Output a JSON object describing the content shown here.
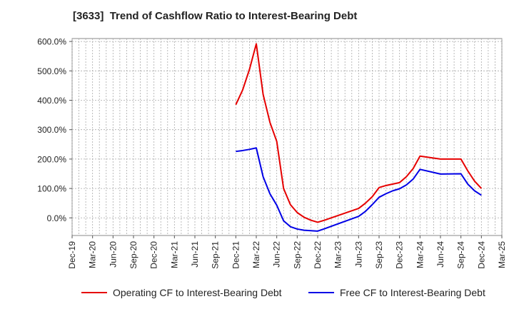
{
  "chart_data": {
    "type": "line",
    "title": "[3633]  Trend of Cashflow Ratio to Interest-Bearing Debt",
    "xlabel": "",
    "ylabel": "",
    "x_ticks": [
      "Dec-19",
      "Mar-20",
      "Jun-20",
      "Sep-20",
      "Dec-20",
      "Mar-21",
      "Jun-21",
      "Sep-21",
      "Dec-21",
      "Mar-22",
      "Jun-22",
      "Sep-22",
      "Dec-22",
      "Mar-23",
      "Jun-23",
      "Sep-23",
      "Dec-23",
      "Mar-24",
      "Jun-24",
      "Sep-24",
      "Dec-24",
      "Mar-25"
    ],
    "y_ticks": [
      "600.0%",
      "500.0%",
      "400.0%",
      "300.0%",
      "200.0%",
      "100.0%",
      "0.0%"
    ],
    "ylim": [
      -60,
      610
    ],
    "grid": true,
    "legend_position": "bottom",
    "series": [
      {
        "name": "Operating CF to Interest-Bearing Debt",
        "color": "#e60000",
        "points": [
          [
            "Dec-21",
            385
          ],
          [
            "Jan-22",
            435
          ],
          [
            "Feb-22",
            505
          ],
          [
            "Mar-22",
            592
          ],
          [
            "Apr-22",
            420
          ],
          [
            "May-22",
            325
          ],
          [
            "Jun-22",
            260
          ],
          [
            "Jul-22",
            100
          ],
          [
            "Aug-22",
            45
          ],
          [
            "Sep-22",
            18
          ],
          [
            "Oct-22",
            2
          ],
          [
            "Nov-22",
            -8
          ],
          [
            "Dec-22",
            -15
          ],
          [
            "Jan-23",
            -8
          ],
          [
            "Mar-23",
            8
          ],
          [
            "Jun-23",
            32
          ],
          [
            "Jul-23",
            50
          ],
          [
            "Aug-23",
            72
          ],
          [
            "Sep-23",
            103
          ],
          [
            "Oct-23",
            110
          ],
          [
            "Dec-23",
            120
          ],
          [
            "Jan-24",
            140
          ],
          [
            "Feb-24",
            168
          ],
          [
            "Mar-24",
            210
          ],
          [
            "Jun-24",
            200
          ],
          [
            "Sep-24",
            200
          ],
          [
            "Oct-24",
            160
          ],
          [
            "Nov-24",
            125
          ],
          [
            "Dec-24",
            100
          ]
        ]
      },
      {
        "name": "Free CF to Interest-Bearing Debt",
        "color": "#0000e6",
        "points": [
          [
            "Dec-21",
            226
          ],
          [
            "Jan-22",
            229
          ],
          [
            "Feb-22",
            233
          ],
          [
            "Mar-22",
            238
          ],
          [
            "Apr-22",
            140
          ],
          [
            "May-22",
            82
          ],
          [
            "Jun-22",
            43
          ],
          [
            "Jul-22",
            -10
          ],
          [
            "Aug-22",
            -30
          ],
          [
            "Sep-22",
            -38
          ],
          [
            "Oct-22",
            -42
          ],
          [
            "Dec-22",
            -45
          ],
          [
            "Jan-23",
            -37
          ],
          [
            "Mar-23",
            -20
          ],
          [
            "Jun-23",
            5
          ],
          [
            "Jul-23",
            22
          ],
          [
            "Aug-23",
            45
          ],
          [
            "Sep-23",
            70
          ],
          [
            "Oct-23",
            82
          ],
          [
            "Nov-23",
            92
          ],
          [
            "Dec-23",
            99
          ],
          [
            "Jan-24",
            112
          ],
          [
            "Feb-24",
            132
          ],
          [
            "Mar-24",
            165
          ],
          [
            "Jun-24",
            149
          ],
          [
            "Sep-24",
            150
          ],
          [
            "Oct-24",
            115
          ],
          [
            "Nov-24",
            92
          ],
          [
            "Dec-24",
            77
          ]
        ]
      }
    ]
  }
}
